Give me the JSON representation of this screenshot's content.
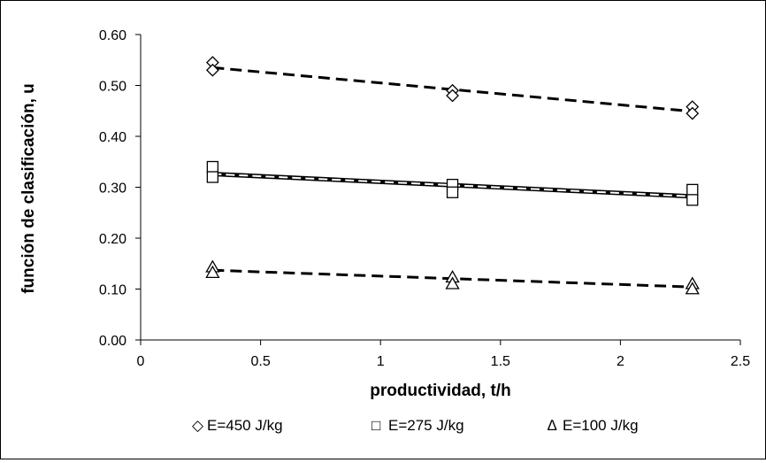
{
  "chart_data": {
    "type": "scatter",
    "xlabel": "productividad, t/h",
    "ylabel": "función de clasificación, u",
    "xlim": [
      0,
      2.5
    ],
    "ylim": [
      0,
      0.6
    ],
    "x_ticks": [
      "0",
      "0.5",
      "1",
      "1.5",
      "2",
      "2.5"
    ],
    "y_ticks": [
      "0.00",
      "0.10",
      "0.20",
      "0.30",
      "0.40",
      "0.50",
      "0.60"
    ],
    "grid": false,
    "legend_position": "bottom",
    "series": [
      {
        "name": "E=450 J/kg",
        "marker": "diamond",
        "points": [
          [
            0.3,
            0.545
          ],
          [
            0.3,
            0.53
          ],
          [
            1.3,
            0.49
          ],
          [
            1.3,
            0.48
          ],
          [
            2.3,
            0.458
          ],
          [
            2.3,
            0.445
          ]
        ],
        "trend": {
          "style": "dashed",
          "from": [
            0.3,
            0.535
          ],
          "to": [
            2.3,
            0.449
          ]
        }
      },
      {
        "name": "E=275 J/kg",
        "marker": "square",
        "points": [
          [
            0.3,
            0.34
          ],
          [
            0.3,
            0.32
          ],
          [
            1.3,
            0.305
          ],
          [
            1.3,
            0.29
          ],
          [
            2.3,
            0.295
          ],
          [
            2.3,
            0.275
          ]
        ],
        "trend": {
          "style": "double",
          "from": [
            0.3,
            0.326
          ],
          "to": [
            2.3,
            0.282
          ]
        }
      },
      {
        "name": "E=100 J/kg",
        "marker": "triangle",
        "points": [
          [
            0.3,
            0.143
          ],
          [
            0.3,
            0.132
          ],
          [
            1.3,
            0.123
          ],
          [
            1.3,
            0.11
          ],
          [
            2.3,
            0.11
          ],
          [
            2.3,
            0.1
          ]
        ],
        "trend": {
          "style": "dashed",
          "from": [
            0.3,
            0.137
          ],
          "to": [
            2.3,
            0.104
          ]
        }
      }
    ]
  },
  "legend": {
    "items": [
      {
        "symbol": "◇",
        "label": "E=450 J/kg"
      },
      {
        "symbol": "□",
        "label": "E=275 J/kg"
      },
      {
        "symbol": "∆",
        "label": "E=100 J/kg"
      }
    ]
  }
}
